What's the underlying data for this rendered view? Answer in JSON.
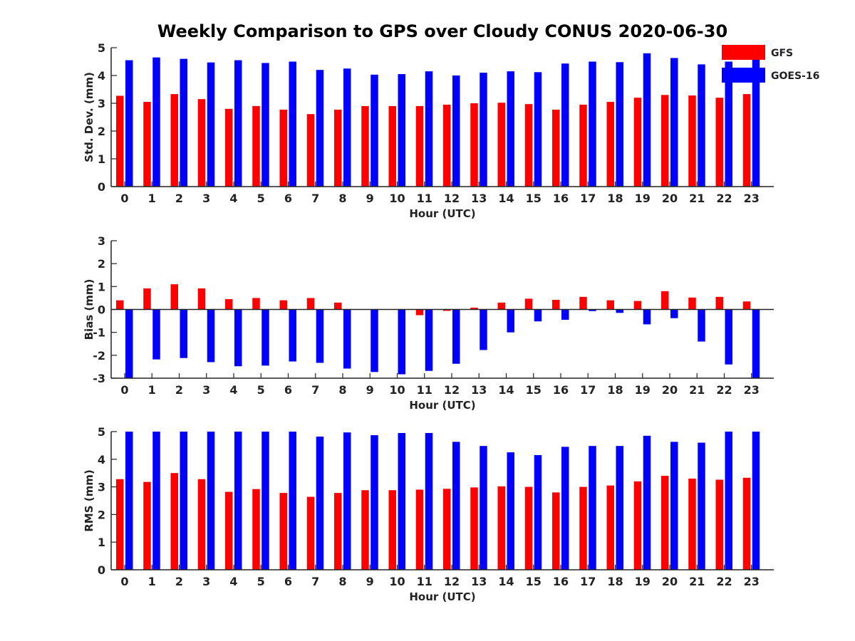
{
  "figure": {
    "title": "Weekly Comparison to GPS over Cloudy CONUS 2020-06-30"
  },
  "legend": {
    "items": [
      {
        "label": "GFS",
        "color": "#ff0000"
      },
      {
        "label": "GOES-16",
        "color": "#0000ff"
      }
    ],
    "placement": "top-right"
  },
  "chart_data": [
    {
      "type": "bar",
      "xlabel": "Hour (UTC)",
      "ylabel": "Std. Dev. (mm)",
      "ylim": [
        0,
        5
      ],
      "yticks": [
        0,
        1,
        2,
        3,
        4,
        5
      ],
      "categories": [
        "0",
        "1",
        "2",
        "3",
        "4",
        "5",
        "6",
        "7",
        "8",
        "9",
        "10",
        "11",
        "12",
        "13",
        "14",
        "15",
        "16",
        "17",
        "18",
        "19",
        "20",
        "21",
        "22",
        "23"
      ],
      "series": [
        {
          "name": "GFS",
          "color": "#ff0000",
          "values": [
            3.27,
            3.05,
            3.33,
            3.15,
            2.8,
            2.9,
            2.77,
            2.61,
            2.77,
            2.9,
            2.9,
            2.9,
            2.95,
            3.0,
            3.02,
            2.97,
            2.77,
            2.95,
            3.05,
            3.2,
            3.3,
            3.28,
            3.2,
            3.33
          ]
        },
        {
          "name": "GOES-16",
          "color": "#0000ff",
          "values": [
            4.55,
            4.65,
            4.6,
            4.47,
            4.55,
            4.45,
            4.5,
            4.2,
            4.25,
            4.03,
            4.05,
            4.15,
            4.0,
            4.1,
            4.15,
            4.12,
            4.43,
            4.5,
            4.48,
            4.8,
            4.63,
            4.4,
            4.5,
            4.6
          ]
        }
      ]
    },
    {
      "type": "bar",
      "xlabel": "Hour (UTC)",
      "ylabel": "Bias (mm)",
      "ylim": [
        -3,
        3
      ],
      "yticks": [
        -3,
        -2,
        -1,
        0,
        1,
        2,
        3
      ],
      "categories": [
        "0",
        "1",
        "2",
        "3",
        "4",
        "5",
        "6",
        "7",
        "8",
        "9",
        "10",
        "11",
        "12",
        "13",
        "14",
        "15",
        "16",
        "17",
        "18",
        "19",
        "20",
        "21",
        "22",
        "23"
      ],
      "series": [
        {
          "name": "GFS",
          "color": "#ff0000",
          "values": [
            0.4,
            0.92,
            1.1,
            0.92,
            0.45,
            0.5,
            0.4,
            0.5,
            0.3,
            0.0,
            0.0,
            -0.25,
            -0.06,
            0.08,
            0.3,
            0.47,
            0.42,
            0.55,
            0.4,
            0.37,
            0.8,
            0.52,
            0.55,
            0.35
          ]
        },
        {
          "name": "GOES-16",
          "color": "#0000ff",
          "values": [
            -3.0,
            -2.18,
            -2.12,
            -2.3,
            -2.48,
            -2.45,
            -2.27,
            -2.33,
            -2.58,
            -2.73,
            -2.83,
            -2.68,
            -2.37,
            -1.77,
            -1.0,
            -0.52,
            -0.45,
            -0.07,
            -0.15,
            -0.65,
            -0.38,
            -1.4,
            -2.4,
            -3.0
          ]
        }
      ]
    },
    {
      "type": "bar",
      "xlabel": "Hour (UTC)",
      "ylabel": "RMS (mm)",
      "ylim": [
        0,
        5
      ],
      "yticks": [
        0,
        1,
        2,
        3,
        4,
        5
      ],
      "categories": [
        "0",
        "1",
        "2",
        "3",
        "4",
        "5",
        "6",
        "7",
        "8",
        "9",
        "10",
        "11",
        "12",
        "13",
        "14",
        "15",
        "16",
        "17",
        "18",
        "19",
        "20",
        "21",
        "22",
        "23"
      ],
      "series": [
        {
          "name": "GFS",
          "color": "#ff0000",
          "values": [
            3.28,
            3.18,
            3.5,
            3.28,
            2.82,
            2.92,
            2.78,
            2.64,
            2.78,
            2.88,
            2.88,
            2.9,
            2.93,
            2.98,
            3.02,
            3.0,
            2.8,
            3.0,
            3.05,
            3.2,
            3.4,
            3.3,
            3.26,
            3.33
          ]
        },
        {
          "name": "GOES-16",
          "color": "#0000ff",
          "values": [
            5.0,
            5.0,
            5.0,
            5.0,
            5.0,
            5.0,
            5.0,
            4.82,
            4.97,
            4.87,
            4.95,
            4.95,
            4.63,
            4.48,
            4.25,
            4.15,
            4.45,
            4.48,
            4.48,
            4.85,
            4.63,
            4.6,
            5.0,
            5.0
          ]
        }
      ]
    }
  ]
}
